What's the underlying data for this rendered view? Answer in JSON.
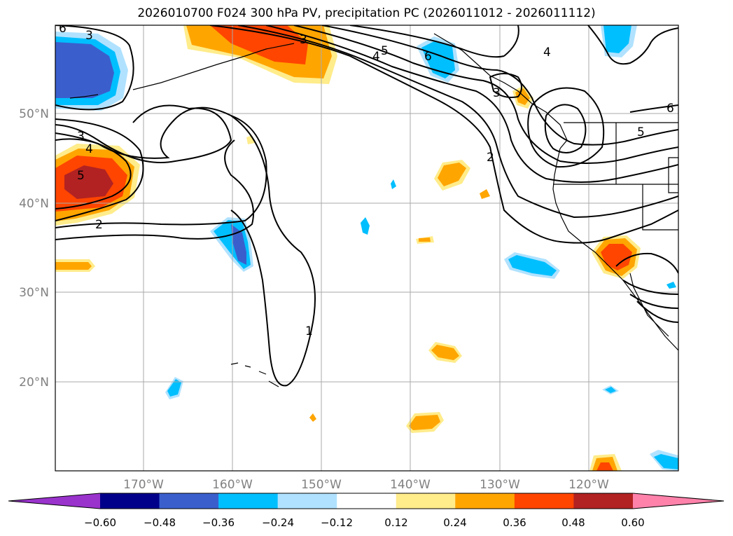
{
  "title": "2026010700 F024 300 hPa PV, precipitation PC (2026011012 - 2026011112)",
  "map": {
    "lat_labels": [
      "50°N",
      "40°N",
      "30°N",
      "20°N"
    ],
    "lon_labels": [
      "170°W",
      "160°W",
      "150°W",
      "140°W",
      "130°W",
      "120°W"
    ],
    "contour_labels": [
      "3",
      "4",
      "5",
      "6",
      "3",
      "4",
      "5",
      "6",
      "3",
      "2",
      "2",
      "1",
      "5",
      "6",
      "3",
      "4"
    ]
  },
  "colorbar": {
    "colors": [
      "#9933cc",
      "#00008b",
      "#3a5fcd",
      "#00bfff",
      "#b0e2ff",
      "#ffffff",
      "#ffec8b",
      "#ffa500",
      "#ff4500",
      "#b22222",
      "#ff82ab"
    ],
    "ticks": [
      "−0.60",
      "−0.48",
      "−0.36",
      "−0.24",
      "−0.12",
      "0.12",
      "0.24",
      "0.36",
      "0.48",
      "0.60"
    ]
  }
}
